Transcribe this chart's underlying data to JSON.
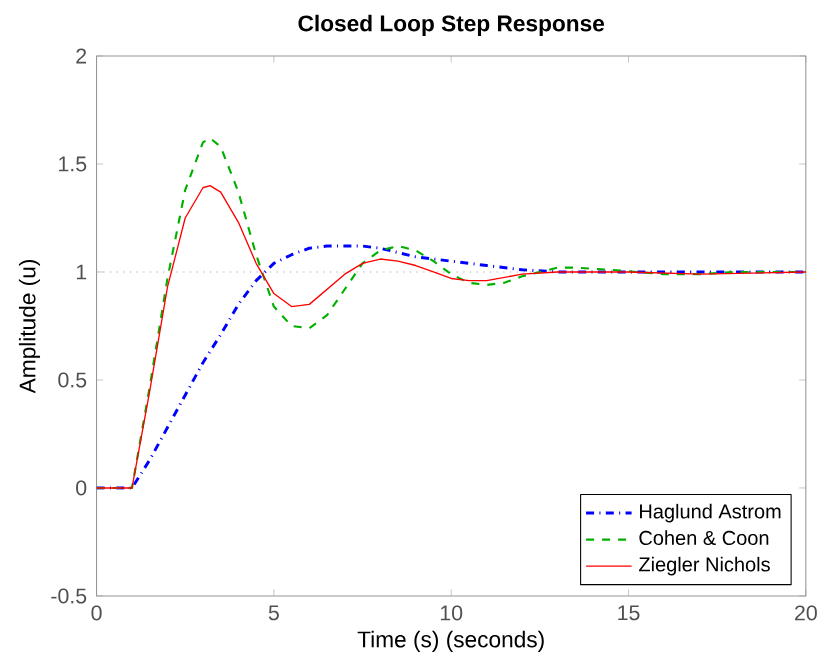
{
  "chart_data": {
    "type": "line",
    "title": "Closed Loop Step Response",
    "xlabel": "Time (s) (seconds)",
    "ylabel": "Amplitude (u)",
    "xlim": [
      0,
      20
    ],
    "ylim": [
      -0.5,
      2
    ],
    "xticks": [
      0,
      5,
      10,
      15,
      20
    ],
    "yticks": [
      -0.5,
      0,
      0.5,
      1,
      1.5,
      2
    ],
    "grid": false,
    "legend": "bottom right",
    "marker": "none",
    "ref_lines": [
      {
        "axis": "y",
        "value": 1,
        "color": "#c8c8c8",
        "line_style": "dotted"
      }
    ],
    "series": [
      {
        "name": "Haglund Astrom",
        "color": "#0000ff",
        "line_style": "dashdot",
        "x": [
          0,
          1,
          1.5,
          2,
          2.5,
          3,
          3.5,
          4,
          4.5,
          5,
          5.5,
          6,
          6.5,
          7,
          7.5,
          8,
          8.5,
          9,
          10,
          11,
          12,
          13,
          15,
          20
        ],
        "values": [
          0,
          0,
          0.13,
          0.28,
          0.43,
          0.58,
          0.71,
          0.85,
          0.96,
          1.04,
          1.08,
          1.11,
          1.12,
          1.12,
          1.12,
          1.11,
          1.09,
          1.07,
          1.05,
          1.03,
          1.01,
          1.0,
          1.0,
          1.0
        ]
      },
      {
        "name": "Cohen & Coon",
        "color": "#00b000",
        "line_style": "dashed",
        "x": [
          0,
          1,
          1.5,
          2,
          2.5,
          3,
          3.2,
          3.5,
          4,
          4.5,
          5,
          5.5,
          6,
          6.5,
          7,
          7.5,
          8,
          8.5,
          9,
          9.5,
          10,
          10.5,
          11,
          11.5,
          12,
          13,
          13.5,
          14.5,
          16,
          17,
          18,
          20
        ],
        "values": [
          0,
          0,
          0.47,
          0.97,
          1.38,
          1.6,
          1.62,
          1.58,
          1.37,
          1.08,
          0.84,
          0.75,
          0.74,
          0.8,
          0.92,
          1.04,
          1.1,
          1.12,
          1.1,
          1.05,
          0.99,
          0.95,
          0.94,
          0.95,
          0.98,
          1.02,
          1.02,
          1.01,
          0.99,
          0.99,
          1.0,
          1.0
        ]
      },
      {
        "name": "Ziegler Nichols",
        "color": "#ff0000",
        "line_style": "solid",
        "x": [
          0,
          1,
          1.5,
          2,
          2.5,
          3,
          3.2,
          3.5,
          4,
          4.5,
          5,
          5.5,
          6,
          6.5,
          7,
          7.5,
          8,
          8.5,
          9,
          9.5,
          10,
          10.5,
          11,
          12,
          13,
          15,
          17,
          20
        ],
        "values": [
          0,
          0,
          0.45,
          0.93,
          1.25,
          1.39,
          1.4,
          1.37,
          1.23,
          1.04,
          0.9,
          0.84,
          0.85,
          0.92,
          0.99,
          1.04,
          1.06,
          1.05,
          1.03,
          1.0,
          0.97,
          0.96,
          0.96,
          0.99,
          1.0,
          1.0,
          0.99,
          1.0
        ]
      }
    ]
  }
}
